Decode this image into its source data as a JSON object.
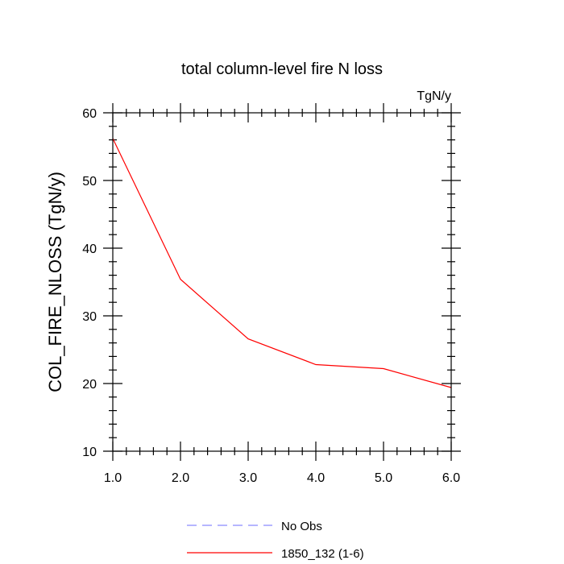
{
  "chart_data": {
    "type": "line",
    "title": "total column-level fire N loss",
    "units_label": "TgN/y",
    "xlabel": "",
    "ylabel": "COL_FIRE_NLOSS  (TgN/y)",
    "xlim": [
      1.0,
      6.0
    ],
    "ylim": [
      10,
      60
    ],
    "x_ticks": [
      1.0,
      2.0,
      3.0,
      4.0,
      5.0,
      6.0
    ],
    "x_tick_labels": [
      "1.0",
      "2.0",
      "3.0",
      "4.0",
      "5.0",
      "6.0"
    ],
    "y_ticks": [
      10,
      20,
      30,
      40,
      50,
      60
    ],
    "y_tick_labels": [
      "10",
      "20",
      "30",
      "40",
      "50",
      "60"
    ],
    "grid": false,
    "legend_position": "bottom",
    "series": [
      {
        "name": "No Obs",
        "color": "#8a8aff",
        "dashed": true,
        "x": [],
        "y": []
      },
      {
        "name": "1850_132 (1-6)",
        "color": "#ff0000",
        "dashed": false,
        "x": [
          1.0,
          2.0,
          3.0,
          4.0,
          5.0,
          6.0
        ],
        "y": [
          56.2,
          35.4,
          26.6,
          22.8,
          22.2,
          19.4
        ]
      }
    ]
  }
}
